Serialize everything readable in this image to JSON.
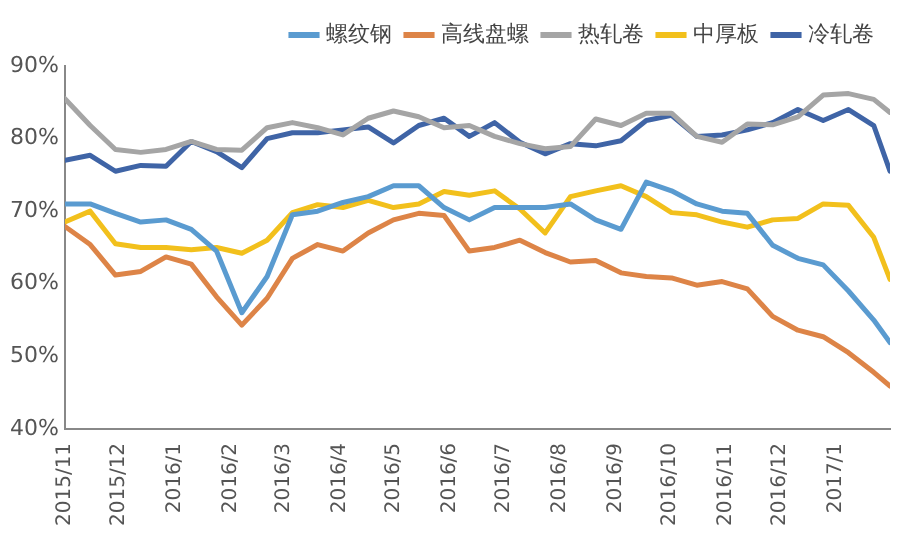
{
  "chart_data": {
    "type": "line",
    "x": [
      "2015-11-01",
      "2015-11-15",
      "2015-11-29",
      "2015-12-13",
      "2015-12-27",
      "2016-01-10",
      "2016-01-24",
      "2016-02-07",
      "2016-02-21",
      "2016-03-06",
      "2016-03-20",
      "2016-04-03",
      "2016-04-17",
      "2016-05-01",
      "2016-05-15",
      "2016-05-29",
      "2016-06-12",
      "2016-06-26",
      "2016-07-10",
      "2016-07-24",
      "2016-08-07",
      "2016-08-21",
      "2016-09-04",
      "2016-09-18",
      "2016-10-02",
      "2016-10-16",
      "2016-10-30",
      "2016-11-13",
      "2016-11-27",
      "2016-12-11",
      "2016-12-25",
      "2017-01-08",
      "2017-01-22",
      "2017-01-31"
    ],
    "series": [
      {
        "name": "螺纹钢",
        "color": "#5a9bd0",
        "values": [
          71,
          71,
          69.7,
          68.5,
          68.8,
          67.5,
          64.5,
          56,
          61,
          69.5,
          70,
          71.2,
          72,
          73.5,
          73.5,
          70.5,
          68.8,
          70.5,
          70.5,
          70.5,
          71,
          68.8,
          67.5,
          74,
          72.8,
          71,
          70,
          69.7,
          65.3,
          63.5,
          62.6,
          59,
          55,
          51.9
        ]
      },
      {
        "name": "高线盘螺",
        "color": "#dd8447",
        "values": [
          67.9,
          65.4,
          61.2,
          61.7,
          63.7,
          62.7,
          58.2,
          54.3,
          58,
          63.5,
          65.4,
          64.5,
          67,
          68.8,
          69.7,
          69.4,
          64.5,
          65,
          66,
          64.3,
          63,
          63.2,
          61.5,
          61,
          60.8,
          59.8,
          60.3,
          59.3,
          55.5,
          53.6,
          52.7,
          50.5,
          47.8,
          45.9
        ]
      },
      {
        "name": "热轧卷",
        "color": "#a5a5a5",
        "values": [
          85.5,
          81.8,
          78.5,
          78.1,
          78.5,
          79.6,
          78.5,
          78.4,
          81.5,
          82.2,
          81.5,
          80.5,
          82.8,
          83.8,
          83,
          81.5,
          81.8,
          80.3,
          79.3,
          78.6,
          78.9,
          82.7,
          81.8,
          83.5,
          83.5,
          80.3,
          79.5,
          82,
          81.9,
          83,
          86,
          86.2,
          85.4,
          83.6
        ]
      },
      {
        "name": "中厚板",
        "color": "#f2c01c",
        "values": [
          68.5,
          70,
          65.5,
          65,
          65,
          64.7,
          65,
          64.2,
          66,
          69.8,
          70.9,
          70.5,
          71.5,
          70.5,
          71,
          72.7,
          72.2,
          72.8,
          70.3,
          67,
          72,
          72.8,
          73.5,
          72,
          69.8,
          69.5,
          68.5,
          67.8,
          68.8,
          69,
          71,
          70.8,
          66.4,
          60.6
        ]
      },
      {
        "name": "冷轧卷",
        "color": "#3f64a6",
        "values": [
          77,
          77.7,
          75.5,
          76.3,
          76.2,
          79.6,
          78.2,
          76,
          80,
          80.8,
          80.8,
          81.2,
          81.6,
          79.4,
          81.8,
          82.8,
          80.3,
          82.2,
          79.5,
          77.9,
          79.3,
          79,
          79.7,
          82.5,
          83.2,
          80.3,
          80.5,
          81.2,
          82.2,
          84,
          82.5,
          84,
          81.8,
          75.5
        ]
      }
    ],
    "xlim": [
      "2015-11-01",
      "2017-01-31"
    ],
    "xticks": [
      {
        "value": "2015-11-01",
        "label": "2015/11"
      },
      {
        "value": "2015-12-01",
        "label": "2015/12"
      },
      {
        "value": "2016-01-01",
        "label": "2016/1"
      },
      {
        "value": "2016-02-01",
        "label": "2016/2"
      },
      {
        "value": "2016-03-01",
        "label": "2016/3"
      },
      {
        "value": "2016-04-01",
        "label": "2016/4"
      },
      {
        "value": "2016-05-01",
        "label": "2016/5"
      },
      {
        "value": "2016-06-01",
        "label": "2016/6"
      },
      {
        "value": "2016-07-01",
        "label": "2016/7"
      },
      {
        "value": "2016-08-01",
        "label": "2016/8"
      },
      {
        "value": "2016-09-01",
        "label": "2016/9"
      },
      {
        "value": "2016-10-01",
        "label": "2016/10"
      },
      {
        "value": "2016-11-01",
        "label": "2016/11"
      },
      {
        "value": "2016-12-01",
        "label": "2016/12"
      },
      {
        "value": "2017-01-01",
        "label": "2017/1"
      }
    ],
    "ylim": [
      40,
      90
    ],
    "yticks": [
      {
        "value": 40,
        "label": "40%"
      },
      {
        "value": 50,
        "label": "50%"
      },
      {
        "value": 60,
        "label": "60%"
      },
      {
        "value": 70,
        "label": "70%"
      },
      {
        "value": 80,
        "label": "80%"
      },
      {
        "value": 90,
        "label": "90%"
      }
    ],
    "grid": false,
    "legend": "top",
    "marker": "none",
    "line_style": "solid"
  }
}
